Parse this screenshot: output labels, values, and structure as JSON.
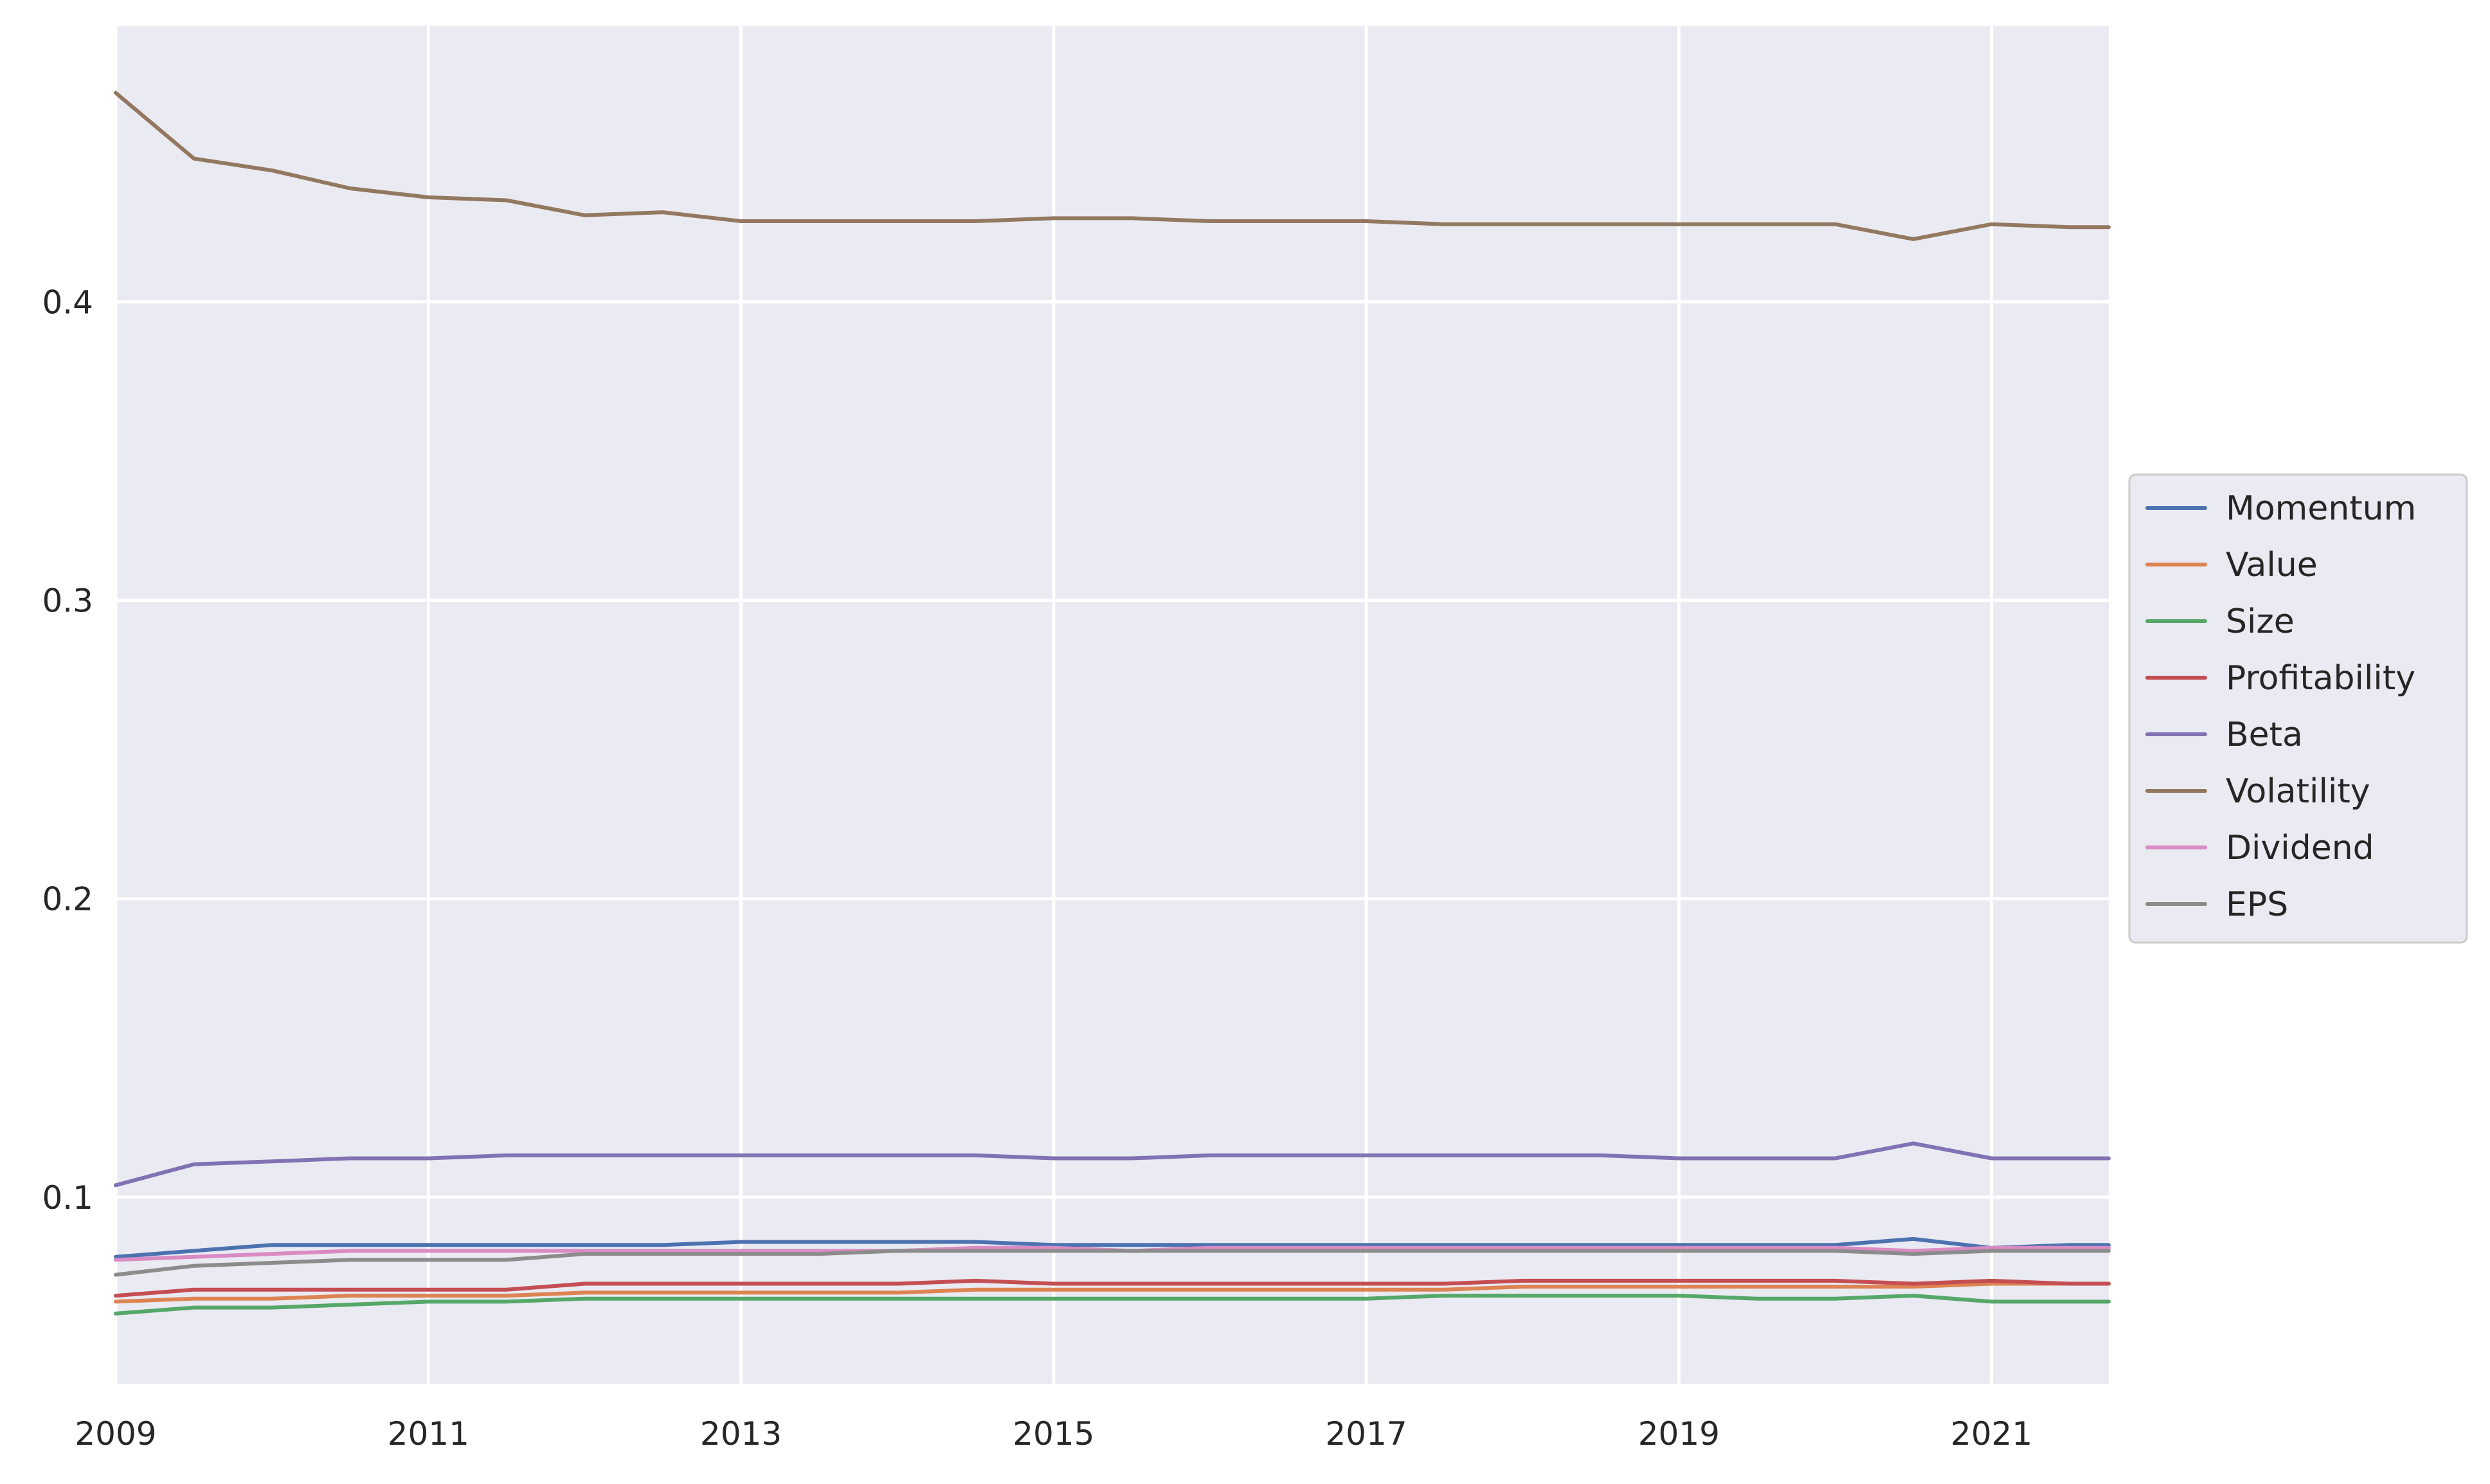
{
  "chart_data": {
    "type": "line",
    "title": "",
    "xlabel": "",
    "ylabel": "",
    "xlim": [
      2009.0,
      2021.75
    ],
    "ylim": [
      0.0375,
      0.4925
    ],
    "x_ticks": [
      2009,
      2011,
      2013,
      2015,
      2017,
      2019,
      2021
    ],
    "x_tick_labels": [
      "2009",
      "2011",
      "2013",
      "2015",
      "2017",
      "2019",
      "2021"
    ],
    "y_ticks": [
      0.1,
      0.2,
      0.3,
      0.4
    ],
    "y_tick_labels": [
      "0.1",
      "0.2",
      "0.3",
      "0.4"
    ],
    "grid": true,
    "legend_position": "outside-right",
    "x": [
      2009.0,
      2009.5,
      2010.0,
      2010.5,
      2011.0,
      2011.5,
      2012.0,
      2012.5,
      2013.0,
      2013.5,
      2014.0,
      2014.5,
      2015.0,
      2015.5,
      2016.0,
      2016.5,
      2017.0,
      2017.5,
      2018.0,
      2018.5,
      2019.0,
      2019.5,
      2020.0,
      2020.5,
      2021.0,
      2021.5,
      2021.75
    ],
    "series": [
      {
        "name": "Momentum",
        "color": "#4c72b0",
        "values": [
          0.08,
          0.082,
          0.084,
          0.084,
          0.084,
          0.084,
          0.084,
          0.084,
          0.085,
          0.085,
          0.085,
          0.085,
          0.084,
          0.084,
          0.084,
          0.084,
          0.084,
          0.084,
          0.084,
          0.084,
          0.084,
          0.084,
          0.084,
          0.086,
          0.083,
          0.084,
          0.084
        ]
      },
      {
        "name": "Value",
        "color": "#dd8452",
        "values": [
          0.065,
          0.066,
          0.066,
          0.067,
          0.067,
          0.067,
          0.068,
          0.068,
          0.068,
          0.068,
          0.068,
          0.069,
          0.069,
          0.069,
          0.069,
          0.069,
          0.069,
          0.069,
          0.07,
          0.07,
          0.07,
          0.07,
          0.07,
          0.07,
          0.071,
          0.071,
          0.071
        ]
      },
      {
        "name": "Size",
        "color": "#55a868",
        "values": [
          0.061,
          0.063,
          0.063,
          0.064,
          0.065,
          0.065,
          0.066,
          0.066,
          0.066,
          0.066,
          0.066,
          0.066,
          0.066,
          0.066,
          0.066,
          0.066,
          0.066,
          0.067,
          0.067,
          0.067,
          0.067,
          0.066,
          0.066,
          0.067,
          0.065,
          0.065,
          0.065
        ]
      },
      {
        "name": "Profitability",
        "color": "#c44e52",
        "values": [
          0.067,
          0.069,
          0.069,
          0.069,
          0.069,
          0.069,
          0.071,
          0.071,
          0.071,
          0.071,
          0.071,
          0.072,
          0.071,
          0.071,
          0.071,
          0.071,
          0.071,
          0.071,
          0.072,
          0.072,
          0.072,
          0.072,
          0.072,
          0.071,
          0.072,
          0.071,
          0.071
        ]
      },
      {
        "name": "Beta",
        "color": "#8172b3",
        "values": [
          0.104,
          0.111,
          0.112,
          0.113,
          0.113,
          0.114,
          0.114,
          0.114,
          0.114,
          0.114,
          0.114,
          0.114,
          0.113,
          0.113,
          0.114,
          0.114,
          0.114,
          0.114,
          0.114,
          0.114,
          0.113,
          0.113,
          0.113,
          0.118,
          0.113,
          0.113,
          0.113
        ]
      },
      {
        "name": "Volatility",
        "color": "#937860",
        "values": [
          0.47,
          0.448,
          0.444,
          0.438,
          0.435,
          0.434,
          0.429,
          0.43,
          0.427,
          0.427,
          0.427,
          0.427,
          0.428,
          0.428,
          0.427,
          0.427,
          0.427,
          0.426,
          0.426,
          0.426,
          0.426,
          0.426,
          0.426,
          0.421,
          0.426,
          0.425,
          0.425
        ]
      },
      {
        "name": "Dividend",
        "color": "#da8bc3",
        "values": [
          0.079,
          0.08,
          0.081,
          0.082,
          0.082,
          0.082,
          0.082,
          0.082,
          0.082,
          0.082,
          0.082,
          0.083,
          0.083,
          0.082,
          0.083,
          0.083,
          0.083,
          0.083,
          0.083,
          0.083,
          0.083,
          0.083,
          0.083,
          0.082,
          0.083,
          0.083,
          0.083
        ]
      },
      {
        "name": "EPS",
        "color": "#8c8c8c",
        "values": [
          0.074,
          0.077,
          0.078,
          0.079,
          0.079,
          0.079,
          0.081,
          0.081,
          0.081,
          0.081,
          0.082,
          0.082,
          0.082,
          0.082,
          0.082,
          0.082,
          0.082,
          0.082,
          0.082,
          0.082,
          0.082,
          0.082,
          0.082,
          0.081,
          0.082,
          0.082,
          0.082
        ]
      }
    ]
  },
  "colors": {
    "plot_background": "#eaeaf2",
    "grid": "#ffffff",
    "legend_background": "#eaeaf2",
    "legend_border": "#cccccc"
  }
}
